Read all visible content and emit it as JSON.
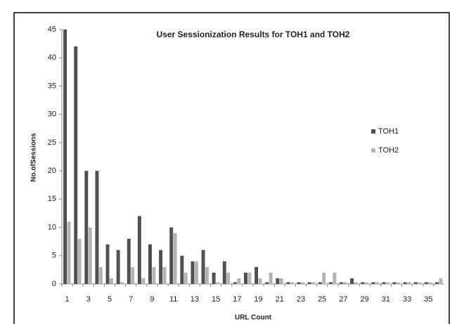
{
  "chart_data": {
    "type": "bar",
    "title": "User Sessionization Results for TOH1 and TOH2",
    "xlabel": "URL Count",
    "ylabel": "No.ofSessions",
    "categories": [
      "1",
      null,
      "3",
      null,
      "5",
      null,
      "7",
      null,
      "9",
      null,
      "11",
      null,
      "13",
      null,
      "15",
      null,
      "17",
      null,
      "19",
      null,
      "21",
      null,
      "23",
      null,
      "25",
      null,
      "27",
      null,
      "29",
      null,
      "31",
      null,
      "33",
      null,
      "35",
      null
    ],
    "series": [
      {
        "name": "TOH1",
        "color": "#505050",
        "values": [
          45,
          42,
          20,
          20,
          7,
          6,
          8,
          12,
          7,
          6,
          10,
          5,
          4,
          6,
          2,
          4,
          0.3,
          2,
          3,
          0.3,
          1,
          0.3,
          0.3,
          0.3,
          0.3,
          0.3,
          0.3,
          1,
          0.3,
          0.3,
          0.3,
          0.3,
          0.3,
          0.3,
          0.3,
          0.3
        ]
      },
      {
        "name": "TOH2",
        "color": "#b4b4b4",
        "values": [
          11,
          8,
          10,
          3,
          1,
          0.3,
          3,
          1,
          3,
          3,
          9,
          2,
          4,
          3,
          0.3,
          2,
          1,
          2,
          1,
          2,
          1,
          0.3,
          0.3,
          0.3,
          2,
          2,
          0.3,
          0.3,
          0.3,
          0.3,
          0.3,
          0.3,
          0.3,
          0.3,
          0.3,
          1
        ]
      }
    ],
    "ylim": [
      0,
      45
    ],
    "yticks": [
      0,
      5,
      10,
      15,
      20,
      25,
      30,
      35,
      40,
      45
    ],
    "legend": "right"
  }
}
